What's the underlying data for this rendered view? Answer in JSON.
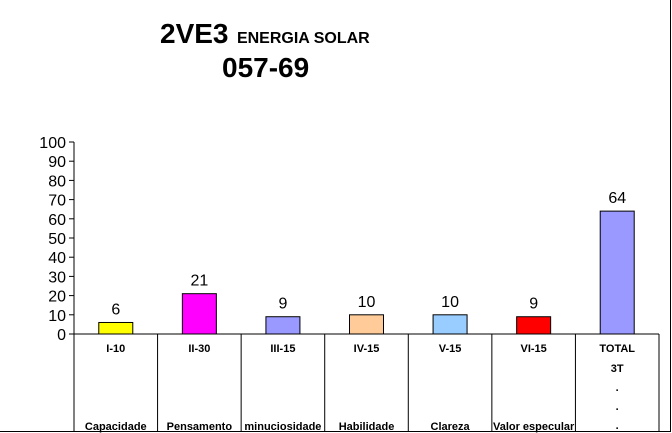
{
  "title": {
    "main": "2VE3",
    "subtitle": "ENERGIA SOLAR",
    "code": "057-69"
  },
  "chart_data": {
    "type": "bar",
    "categories": [
      "I-10",
      "II-30",
      "III-15",
      "IV-15",
      "V-15",
      "VI-15",
      "TOTAL"
    ],
    "descriptions": [
      "Capacidade",
      "Pensamento",
      "minuciosidade",
      "Habilidade",
      "Clareza",
      "Valor especular",
      ""
    ],
    "total_extra": [
      "3T",
      ".",
      ".",
      "."
    ],
    "values": [
      6,
      21,
      9,
      10,
      10,
      9,
      64
    ],
    "colors": [
      "#ffff00",
      "#ff00ff",
      "#9999ff",
      "#ffcc99",
      "#99ccff",
      "#ff0000",
      "#9999ff"
    ],
    "ylim": [
      0,
      100
    ],
    "yticks": [
      0,
      10,
      20,
      30,
      40,
      50,
      60,
      70,
      80,
      90,
      100
    ],
    "grid": false,
    "legend": "none"
  }
}
